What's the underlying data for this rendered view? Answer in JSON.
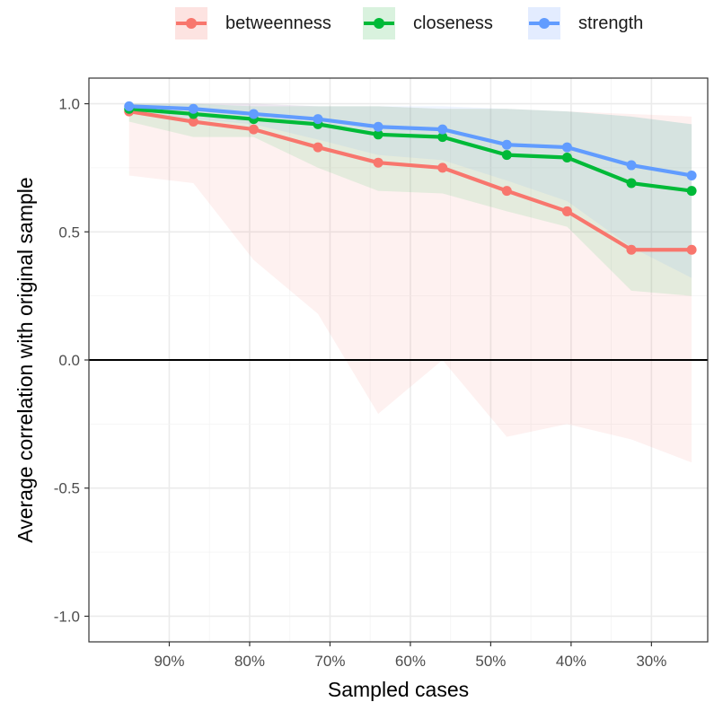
{
  "chart_data": {
    "type": "line",
    "xlabel": "Sampled cases",
    "ylabel": "Average correlation with original sample",
    "x_ticks": [
      "90%",
      "80%",
      "70%",
      "60%",
      "50%",
      "40%",
      "30%"
    ],
    "x_tick_values": [
      90,
      80,
      70,
      60,
      50,
      40,
      30
    ],
    "xlim": [
      100,
      23
    ],
    "y_ticks": [
      "-1.0",
      "-0.5",
      "0.0",
      "0.5",
      "1.0"
    ],
    "y_tick_values": [
      -1.0,
      -0.5,
      0.0,
      0.5,
      1.0
    ],
    "ylim": [
      -1.1,
      1.1
    ],
    "reference_line": 0,
    "grid": true,
    "legend_position": "top",
    "x": [
      95,
      87,
      79.5,
      71.5,
      64,
      56,
      48,
      40.5,
      32.5,
      25
    ],
    "series": [
      {
        "name": "betweenness",
        "color": "#F8766D",
        "values": [
          0.97,
          0.93,
          0.9,
          0.83,
          0.77,
          0.75,
          0.66,
          0.58,
          0.43,
          0.43
        ],
        "lower": [
          0.72,
          0.69,
          0.39,
          0.18,
          -0.21,
          0.0,
          -0.3,
          -0.25,
          -0.31,
          -0.4
        ],
        "upper": [
          1.0,
          1.0,
          1.0,
          0.99,
          0.99,
          0.98,
          0.98,
          0.97,
          0.96,
          0.95
        ]
      },
      {
        "name": "closeness",
        "color": "#00BA38",
        "values": [
          0.98,
          0.96,
          0.94,
          0.92,
          0.88,
          0.87,
          0.8,
          0.79,
          0.69,
          0.66
        ],
        "lower": [
          0.93,
          0.87,
          0.87,
          0.75,
          0.66,
          0.65,
          0.58,
          0.52,
          0.27,
          0.25
        ],
        "upper": [
          1.0,
          1.0,
          0.99,
          0.99,
          0.99,
          0.98,
          0.98,
          0.97,
          0.95,
          0.92
        ]
      },
      {
        "name": "strength",
        "color": "#619CFF",
        "values": [
          0.99,
          0.98,
          0.96,
          0.94,
          0.91,
          0.9,
          0.84,
          0.83,
          0.76,
          0.72
        ],
        "lower": [
          0.96,
          0.94,
          0.92,
          0.86,
          0.8,
          0.78,
          0.7,
          0.62,
          0.44,
          0.32
        ],
        "upper": [
          1.0,
          1.0,
          1.0,
          0.99,
          0.99,
          0.99,
          0.98,
          0.97,
          0.95,
          0.92
        ]
      }
    ]
  }
}
